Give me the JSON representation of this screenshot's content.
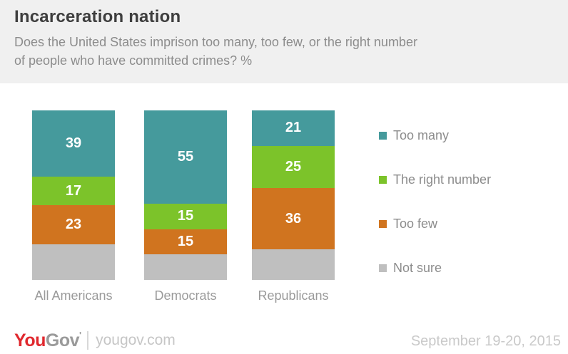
{
  "header": {
    "title": "Incarceration nation",
    "subtitle_lines": [
      "Does the United States imprison too many, too few, or the right number",
      "of people who have committed crimes? %"
    ]
  },
  "chart_data": {
    "type": "bar",
    "stacked": true,
    "unit": "%",
    "title": "Incarceration nation",
    "question": "Does the United States imprison too many, too few, or the right number of people who have committed crimes? %",
    "categories": [
      "All Americans",
      "Democrats",
      "Republicans"
    ],
    "series": [
      {
        "name": "Too many",
        "color": "#459a9c",
        "values": [
          39,
          55,
          21
        ],
        "labels_shown": true
      },
      {
        "name": "The right number",
        "color": "#7cc32a",
        "values": [
          17,
          15,
          25
        ],
        "labels_shown": true
      },
      {
        "name": "Too few",
        "color": "#d0741f",
        "values": [
          23,
          15,
          36
        ],
        "labels_shown": true
      },
      {
        "name": "Not sure",
        "color": "#bfbfbf",
        "values": [
          21,
          15,
          18
        ],
        "labels_shown": false
      }
    ],
    "ylim": [
      0,
      100
    ],
    "grid": false,
    "legend_position": "right",
    "value_label_color": "#ffffff"
  },
  "footer": {
    "logo_you": "You",
    "logo_gov": "Gov",
    "logo_tick": "'",
    "site": "yougov.com",
    "date": "September 19-20, 2015"
  }
}
